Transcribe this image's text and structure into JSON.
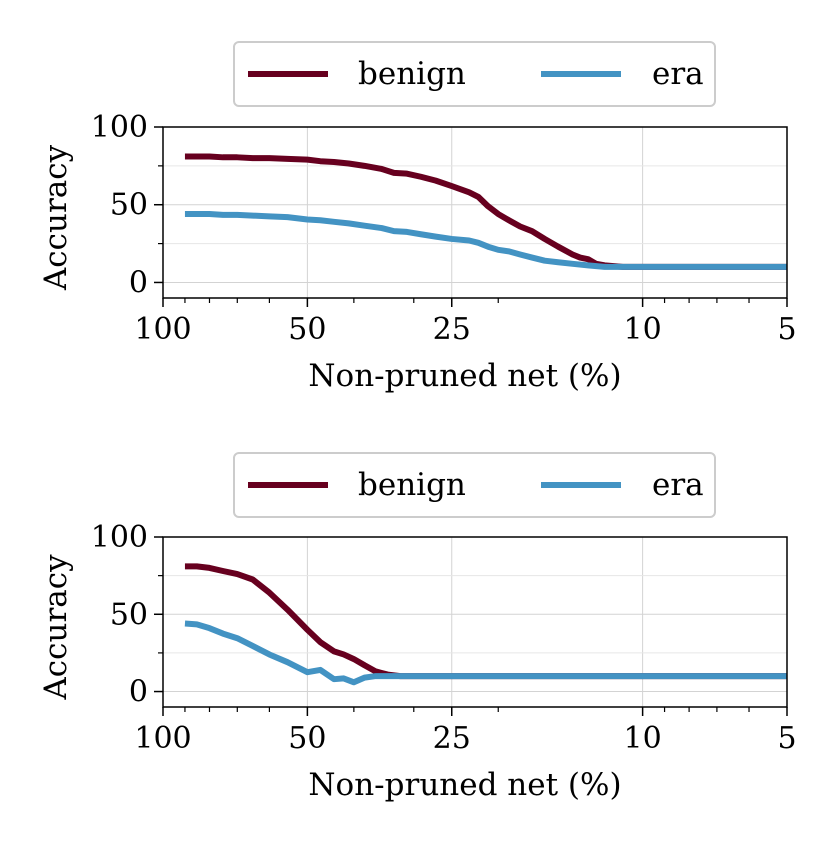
{
  "chart_data": [
    {
      "type": "line",
      "xlabel": "Non-pruned net (%)",
      "ylabel": "Accuracy",
      "xscale": "log",
      "x_reversed": true,
      "xlim": [
        100,
        5
      ],
      "ylim": [
        -10,
        100
      ],
      "xticks": [
        100,
        50,
        25,
        10,
        5
      ],
      "xtick_labels": [
        "100",
        "50",
        "25",
        "10",
        "5"
      ],
      "yticks": [
        0,
        50,
        100
      ],
      "ytick_labels": [
        "0",
        "50",
        "100"
      ],
      "grid": true,
      "legend": "top-center, outside",
      "series": [
        {
          "name": "benign",
          "color": "#67001f",
          "x": [
            90,
            85,
            80,
            75,
            70,
            65,
            60,
            55,
            50,
            47,
            44,
            41,
            38,
            35,
            33,
            31,
            29,
            27,
            25,
            23,
            22,
            21,
            20,
            19,
            18,
            17,
            16,
            15,
            14,
            13.5,
            13,
            12.5,
            12,
            11.5,
            11,
            10.5,
            10,
            9,
            8,
            7,
            6,
            5
          ],
          "y": [
            81,
            81,
            81,
            80.5,
            80.5,
            80,
            80,
            79.5,
            79,
            78,
            77.5,
            76.5,
            75,
            73,
            70.5,
            70,
            68,
            65.5,
            62,
            58,
            55,
            49,
            44,
            40,
            36,
            33,
            28,
            23,
            18,
            16,
            15,
            12,
            11,
            10.5,
            10,
            10,
            10,
            10,
            10,
            10,
            10,
            10
          ]
        },
        {
          "name": "era",
          "color": "#4393c3",
          "x": [
            90,
            85,
            80,
            75,
            70,
            65,
            60,
            55,
            50,
            47,
            44,
            41,
            38,
            35,
            33,
            31,
            29,
            27,
            25,
            23,
            22,
            21,
            20,
            19,
            18,
            17,
            16,
            15,
            14,
            13,
            12,
            11,
            10,
            9,
            8,
            7,
            6,
            5
          ],
          "y": [
            44,
            44,
            44,
            43.5,
            43.5,
            43,
            42.5,
            42,
            40.5,
            40,
            39,
            38,
            36.5,
            35,
            33,
            32.5,
            31,
            29.5,
            28,
            27,
            25.5,
            23,
            21,
            20,
            18,
            16,
            14,
            13,
            12,
            11,
            10,
            10,
            10,
            10,
            10,
            10,
            10,
            10
          ]
        }
      ]
    },
    {
      "type": "line",
      "xlabel": "Non-pruned net (%)",
      "ylabel": "Accuracy",
      "xscale": "log",
      "x_reversed": true,
      "xlim": [
        100,
        5
      ],
      "ylim": [
        -10,
        100
      ],
      "xticks": [
        100,
        50,
        25,
        10,
        5
      ],
      "xtick_labels": [
        "100",
        "50",
        "25",
        "10",
        "5"
      ],
      "yticks": [
        0,
        50,
        100
      ],
      "ytick_labels": [
        "0",
        "50",
        "100"
      ],
      "grid": true,
      "legend": "top-center, outside",
      "series": [
        {
          "name": "benign",
          "color": "#67001f",
          "x": [
            90,
            85,
            80,
            75,
            70,
            65,
            60,
            55,
            50,
            47,
            44,
            42,
            40,
            38,
            36,
            34,
            33,
            32,
            31,
            25,
            20,
            15,
            10,
            5
          ],
          "y": [
            81,
            81,
            80,
            78,
            76,
            72.5,
            64,
            53,
            40,
            32,
            26,
            24,
            21,
            17,
            13,
            11,
            10.5,
            10,
            10,
            10,
            10,
            10,
            10,
            10
          ]
        },
        {
          "name": "era",
          "color": "#4393c3",
          "x": [
            90,
            85,
            80,
            75,
            70,
            65,
            60,
            55,
            50,
            47,
            44,
            42,
            40,
            38,
            36,
            34,
            33,
            32,
            31,
            25,
            20,
            15,
            10,
            5
          ],
          "y": [
            44,
            43.5,
            41,
            37.5,
            34.5,
            29.5,
            24,
            19,
            12.5,
            14,
            8,
            8.5,
            6,
            9,
            10,
            10,
            10,
            10,
            10,
            10,
            10,
            10,
            10,
            10
          ]
        }
      ]
    }
  ]
}
